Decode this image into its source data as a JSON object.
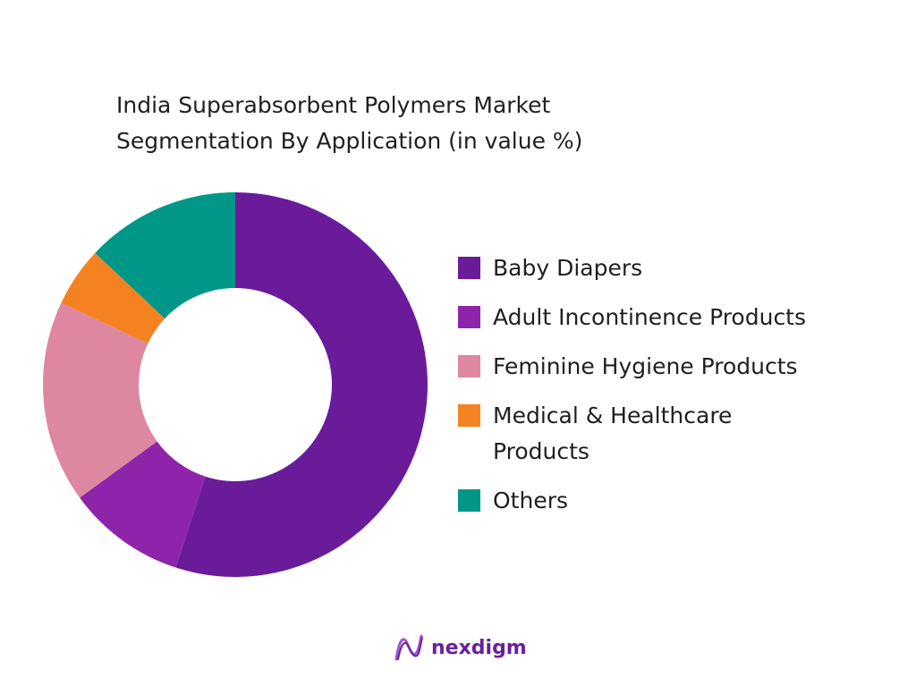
{
  "chart_data": {
    "type": "pie",
    "title_lines": [
      "India Superabsorbent Polymers Market",
      "Segmentation By Application (in value %)"
    ],
    "categories": [
      "Baby Diapers",
      "Adult Incontinence Products",
      "Feminine Hygiene Products",
      "Medical & Healthcare Products",
      "Others"
    ],
    "legend_lines": [
      [
        "Baby Diapers"
      ],
      [
        "Adult Incontinence Products"
      ],
      [
        "Feminine Hygiene Products"
      ],
      [
        "Medical & Healthcare",
        "Products"
      ],
      [
        "Others"
      ]
    ],
    "values": [
      55,
      10,
      17,
      5,
      13
    ],
    "colors": [
      "#6a1b9a",
      "#8e24aa",
      "#de87a0",
      "#f58220",
      "#009688"
    ],
    "donut": true,
    "legend_position": "right"
  },
  "brand": {
    "logo_text": "nexdigm",
    "logo_color": "#6b1fa0"
  }
}
